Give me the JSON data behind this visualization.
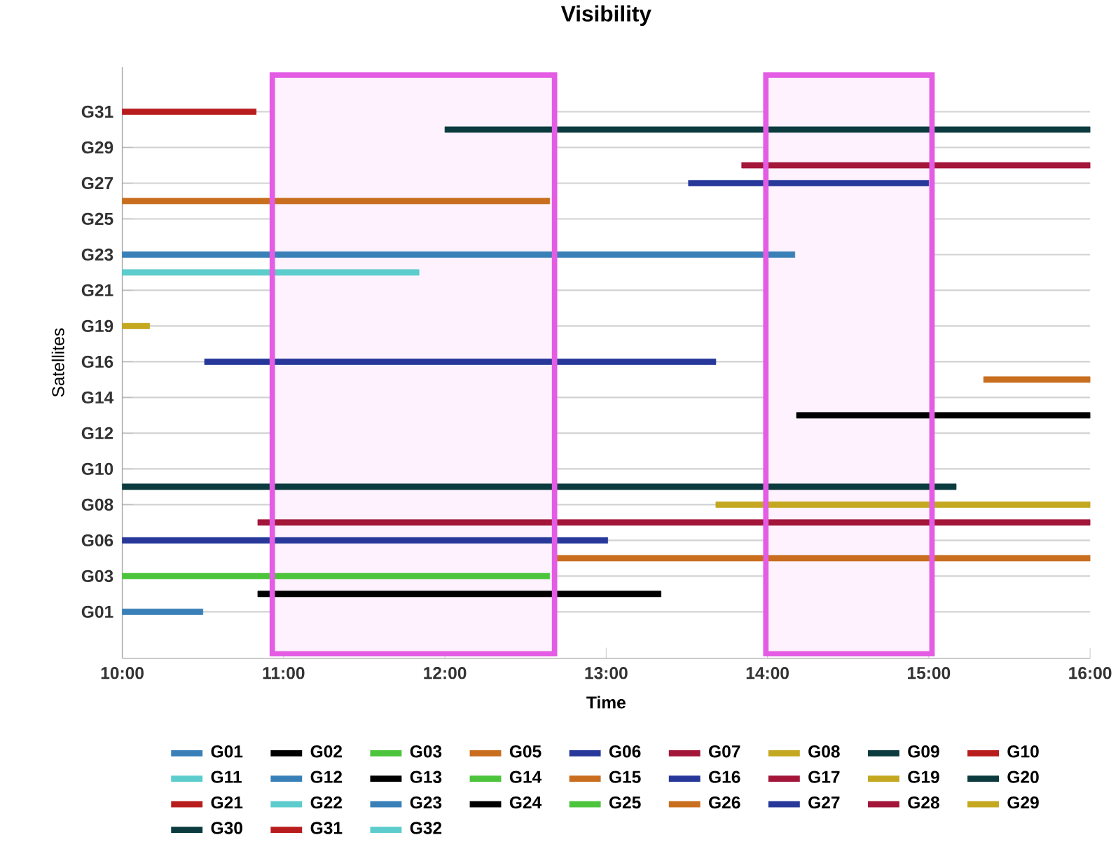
{
  "chart_data": {
    "type": "bar",
    "orientation": "horizontal",
    "title": "Visibility",
    "xlabel": "Time",
    "ylabel": "Satellites",
    "categories": [
      null,
      "G31",
      null,
      "G29",
      null,
      "G27",
      null,
      "G25",
      null,
      "G23",
      null,
      "G21",
      null,
      "G19",
      null,
      "G16",
      null,
      "G14",
      null,
      "G12",
      null,
      "G10",
      null,
      "G08",
      null,
      "G06",
      null,
      "G03",
      null,
      "G01"
    ],
    "xlim": [
      10,
      16
    ],
    "xticks": [
      {
        "value": 10,
        "label": "10:00"
      },
      {
        "value": 11,
        "label": "11:00"
      },
      {
        "value": 12,
        "label": "12:00"
      },
      {
        "value": 13,
        "label": "13:00"
      },
      {
        "value": 14,
        "label": "14:00"
      },
      {
        "value": 15,
        "label": "15:00"
      },
      {
        "value": 16,
        "label": "16:00"
      }
    ],
    "grid": "y",
    "legend": "bottom",
    "bands": [
      {
        "axis": "x",
        "from": 10.93,
        "to": 12.68
      },
      {
        "axis": "x",
        "from": 13.99,
        "to": 15.02
      }
    ],
    "series": [
      {
        "name": "G01",
        "color": "#3a80b8",
        "values": [
          null,
          null,
          null,
          null,
          null,
          null,
          null,
          null,
          null,
          null,
          null,
          null,
          null,
          null,
          null,
          null,
          null,
          null,
          null,
          null,
          null,
          null,
          null,
          null,
          null,
          null,
          null,
          null,
          null,
          0.5
        ],
        "base": [
          null,
          null,
          null,
          null,
          null,
          null,
          null,
          null,
          null,
          null,
          null,
          null,
          null,
          null,
          null,
          null,
          null,
          null,
          null,
          null,
          null,
          null,
          null,
          null,
          null,
          null,
          null,
          null,
          null,
          10.0
        ]
      },
      {
        "name": "G02",
        "color": "#000000",
        "values": [
          null,
          null,
          null,
          null,
          null,
          null,
          null,
          null,
          null,
          null,
          null,
          null,
          null,
          null,
          null,
          null,
          null,
          null,
          null,
          null,
          null,
          null,
          null,
          null,
          null,
          null,
          null,
          null,
          2.5,
          null
        ],
        "base": [
          null,
          null,
          null,
          null,
          null,
          null,
          null,
          null,
          null,
          null,
          null,
          null,
          null,
          null,
          null,
          null,
          null,
          null,
          null,
          null,
          null,
          null,
          null,
          null,
          null,
          null,
          null,
          null,
          10.84,
          null
        ]
      },
      {
        "name": "G03",
        "color": "#4cc43c",
        "values": [
          null,
          null,
          null,
          null,
          null,
          null,
          null,
          null,
          null,
          null,
          null,
          null,
          null,
          null,
          null,
          null,
          null,
          null,
          null,
          null,
          null,
          null,
          null,
          null,
          null,
          null,
          null,
          2.65,
          null,
          null
        ],
        "base": [
          null,
          null,
          null,
          null,
          null,
          null,
          null,
          null,
          null,
          null,
          null,
          null,
          null,
          null,
          null,
          null,
          null,
          null,
          null,
          null,
          null,
          null,
          null,
          null,
          null,
          null,
          null,
          10.0,
          null,
          null
        ]
      },
      {
        "name": "G05",
        "color": "#c86e1e",
        "values": [
          null,
          null,
          null,
          null,
          null,
          null,
          null,
          null,
          null,
          null,
          null,
          null,
          null,
          null,
          null,
          null,
          null,
          null,
          null,
          null,
          null,
          null,
          null,
          null,
          null,
          null,
          3.32,
          null,
          null,
          null
        ],
        "base": [
          null,
          null,
          null,
          null,
          null,
          null,
          null,
          null,
          null,
          null,
          null,
          null,
          null,
          null,
          null,
          null,
          null,
          null,
          null,
          null,
          null,
          null,
          null,
          null,
          null,
          null,
          12.68,
          null,
          null,
          null
        ]
      },
      {
        "name": "G06",
        "color": "#27389a",
        "values": [
          null,
          null,
          null,
          null,
          null,
          null,
          null,
          null,
          null,
          null,
          null,
          null,
          null,
          null,
          null,
          null,
          null,
          null,
          null,
          null,
          null,
          null,
          null,
          null,
          null,
          3.01,
          null,
          null,
          null,
          null
        ],
        "base": [
          null,
          null,
          null,
          null,
          null,
          null,
          null,
          null,
          null,
          null,
          null,
          null,
          null,
          null,
          null,
          null,
          null,
          null,
          null,
          null,
          null,
          null,
          null,
          null,
          null,
          10.0,
          null,
          null,
          null,
          null
        ]
      },
      {
        "name": "G07",
        "color": "#a3163a",
        "values": [
          null,
          null,
          null,
          null,
          null,
          null,
          null,
          null,
          null,
          null,
          null,
          null,
          null,
          null,
          null,
          null,
          null,
          null,
          null,
          null,
          null,
          null,
          null,
          null,
          5.16,
          null,
          null,
          null,
          null,
          null
        ],
        "base": [
          null,
          null,
          null,
          null,
          null,
          null,
          null,
          null,
          null,
          null,
          null,
          null,
          null,
          null,
          null,
          null,
          null,
          null,
          null,
          null,
          null,
          null,
          null,
          null,
          10.84,
          null,
          null,
          null,
          null,
          null
        ]
      },
      {
        "name": "G08",
        "color": "#c4a820",
        "values": [
          null,
          null,
          null,
          null,
          null,
          null,
          null,
          null,
          null,
          null,
          null,
          null,
          null,
          null,
          null,
          null,
          null,
          null,
          null,
          null,
          null,
          null,
          null,
          2.32,
          null,
          null,
          null,
          null,
          null,
          null
        ],
        "base": [
          null,
          null,
          null,
          null,
          null,
          null,
          null,
          null,
          null,
          null,
          null,
          null,
          null,
          null,
          null,
          null,
          null,
          null,
          null,
          null,
          null,
          null,
          null,
          13.68,
          null,
          null,
          null,
          null,
          null,
          null
        ]
      },
      {
        "name": "G09",
        "color": "#0b3b3e",
        "values": [
          null,
          null,
          null,
          null,
          null,
          null,
          null,
          null,
          null,
          null,
          null,
          null,
          null,
          null,
          null,
          null,
          null,
          null,
          null,
          null,
          null,
          null,
          5.17,
          null,
          null,
          null,
          null,
          null,
          null,
          null
        ],
        "base": [
          null,
          null,
          null,
          null,
          null,
          null,
          null,
          null,
          null,
          null,
          null,
          null,
          null,
          null,
          null,
          null,
          null,
          null,
          null,
          null,
          null,
          null,
          10.0,
          null,
          null,
          null,
          null,
          null,
          null,
          null
        ]
      },
      {
        "name": "G10",
        "color": "#b81c1c",
        "values": [
          null,
          null,
          null,
          null,
          null,
          null,
          null,
          null,
          null,
          null,
          null,
          null,
          null,
          null,
          null,
          null,
          null,
          null,
          null,
          null,
          null,
          null,
          null,
          null,
          null,
          null,
          null,
          null,
          null,
          null
        ]
      },
      {
        "name": "G11",
        "color": "#5ccccc",
        "values": [
          null,
          null,
          null,
          null,
          null,
          null,
          null,
          null,
          null,
          null,
          null,
          null,
          null,
          null,
          null,
          null,
          null,
          null,
          null,
          null,
          null,
          null,
          null,
          null,
          null,
          null,
          null,
          null,
          null,
          null
        ]
      },
      {
        "name": "G12",
        "color": "#3a80b8",
        "values": [
          null,
          null,
          null,
          null,
          null,
          null,
          null,
          null,
          null,
          null,
          null,
          null,
          null,
          null,
          null,
          null,
          null,
          null,
          null,
          null,
          null,
          null,
          null,
          null,
          null,
          null,
          null,
          null,
          null,
          null
        ]
      },
      {
        "name": "G13",
        "color": "#000000",
        "values": [
          null,
          null,
          null,
          null,
          null,
          null,
          null,
          null,
          null,
          null,
          null,
          null,
          null,
          null,
          null,
          null,
          null,
          null,
          1.82,
          null,
          null,
          null,
          null,
          null,
          null,
          null,
          null,
          null,
          null,
          null
        ],
        "base": [
          null,
          null,
          null,
          null,
          null,
          null,
          null,
          null,
          null,
          null,
          null,
          null,
          null,
          null,
          null,
          null,
          null,
          null,
          14.18,
          null,
          null,
          null,
          null,
          null,
          null,
          null,
          null,
          null,
          null,
          null
        ]
      },
      {
        "name": "G14",
        "color": "#4cc43c",
        "values": [
          null,
          null,
          null,
          null,
          null,
          null,
          null,
          null,
          null,
          null,
          null,
          null,
          null,
          null,
          null,
          null,
          null,
          null,
          null,
          null,
          null,
          null,
          null,
          null,
          null,
          null,
          null,
          null,
          null,
          null
        ]
      },
      {
        "name": "G15",
        "color": "#c86e1e",
        "values": [
          null,
          null,
          null,
          null,
          null,
          null,
          null,
          null,
          null,
          null,
          null,
          null,
          null,
          null,
          null,
          null,
          0.66,
          null,
          null,
          null,
          null,
          null,
          null,
          null,
          null,
          null,
          null,
          null,
          null,
          null
        ],
        "base": [
          null,
          null,
          null,
          null,
          null,
          null,
          null,
          null,
          null,
          null,
          null,
          null,
          null,
          null,
          null,
          null,
          15.34,
          null,
          null,
          null,
          null,
          null,
          null,
          null,
          null,
          null,
          null,
          null,
          null,
          null
        ]
      },
      {
        "name": "G16",
        "color": "#27389a",
        "values": [
          null,
          null,
          null,
          null,
          null,
          null,
          null,
          null,
          null,
          null,
          null,
          null,
          null,
          null,
          null,
          3.17,
          null,
          null,
          null,
          null,
          null,
          null,
          null,
          null,
          null,
          null,
          null,
          null,
          null,
          null
        ],
        "base": [
          null,
          null,
          null,
          null,
          null,
          null,
          null,
          null,
          null,
          null,
          null,
          null,
          null,
          null,
          null,
          10.51,
          null,
          null,
          null,
          null,
          null,
          null,
          null,
          null,
          null,
          null,
          null,
          null,
          null,
          null
        ]
      },
      {
        "name": "G17",
        "color": "#a3163a",
        "values": [
          null,
          null,
          null,
          null,
          null,
          null,
          null,
          null,
          null,
          null,
          null,
          null,
          null,
          null,
          null,
          null,
          null,
          null,
          null,
          null,
          null,
          null,
          null,
          null,
          null,
          null,
          null,
          null,
          null,
          null
        ]
      },
      {
        "name": "G19",
        "color": "#c4a820",
        "values": [
          null,
          null,
          null,
          null,
          null,
          null,
          null,
          null,
          null,
          null,
          null,
          null,
          null,
          0.17,
          null,
          null,
          null,
          null,
          null,
          null,
          null,
          null,
          null,
          null,
          null,
          null,
          null,
          null,
          null,
          null
        ],
        "base": [
          null,
          null,
          null,
          null,
          null,
          null,
          null,
          null,
          null,
          null,
          null,
          null,
          null,
          10.0,
          null,
          null,
          null,
          null,
          null,
          null,
          null,
          null,
          null,
          null,
          null,
          null,
          null,
          null,
          null,
          null
        ]
      },
      {
        "name": "G20",
        "color": "#0b3b3e",
        "values": [
          null,
          null,
          null,
          null,
          null,
          null,
          null,
          null,
          null,
          null,
          null,
          null,
          null,
          null,
          null,
          null,
          null,
          null,
          null,
          null,
          null,
          null,
          null,
          null,
          null,
          null,
          null,
          null,
          null,
          null
        ]
      },
      {
        "name": "G21",
        "color": "#b81c1c",
        "values": [
          null,
          null,
          null,
          null,
          null,
          null,
          null,
          null,
          null,
          null,
          null,
          null,
          null,
          null,
          null,
          null,
          null,
          null,
          null,
          null,
          null,
          null,
          null,
          null,
          null,
          null,
          null,
          null,
          null,
          null
        ]
      },
      {
        "name": "G22",
        "color": "#5ccccc",
        "values": [
          null,
          null,
          null,
          null,
          null,
          null,
          null,
          null,
          null,
          null,
          1.84,
          null,
          null,
          null,
          null,
          null,
          null,
          null,
          null,
          null,
          null,
          null,
          null,
          null,
          null,
          null,
          null,
          null,
          null,
          null
        ],
        "base": [
          null,
          null,
          null,
          null,
          null,
          null,
          null,
          null,
          null,
          null,
          10.0,
          null,
          null,
          null,
          null,
          null,
          null,
          null,
          null,
          null,
          null,
          null,
          null,
          null,
          null,
          null,
          null,
          null,
          null,
          null
        ]
      },
      {
        "name": "G23",
        "color": "#3a80b8",
        "values": [
          null,
          null,
          null,
          null,
          null,
          null,
          null,
          null,
          null,
          4.17,
          null,
          null,
          null,
          null,
          null,
          null,
          null,
          null,
          null,
          null,
          null,
          null,
          null,
          null,
          null,
          null,
          null,
          null,
          null,
          null
        ],
        "base": [
          null,
          null,
          null,
          null,
          null,
          null,
          null,
          null,
          null,
          10.0,
          null,
          null,
          null,
          null,
          null,
          null,
          null,
          null,
          null,
          null,
          null,
          null,
          null,
          null,
          null,
          null,
          null,
          null,
          null,
          null
        ]
      },
      {
        "name": "G24",
        "color": "#000000",
        "values": [
          null,
          null,
          null,
          null,
          null,
          null,
          null,
          null,
          null,
          null,
          null,
          null,
          null,
          null,
          null,
          null,
          null,
          null,
          null,
          null,
          null,
          null,
          null,
          null,
          null,
          null,
          null,
          null,
          null,
          null
        ]
      },
      {
        "name": "G25",
        "color": "#4cc43c",
        "values": [
          null,
          null,
          null,
          null,
          null,
          null,
          null,
          null,
          null,
          null,
          null,
          null,
          null,
          null,
          null,
          null,
          null,
          null,
          null,
          null,
          null,
          null,
          null,
          null,
          null,
          null,
          null,
          null,
          null,
          null
        ]
      },
      {
        "name": "G26",
        "color": "#c86e1e",
        "values": [
          null,
          null,
          null,
          null,
          null,
          null,
          2.65,
          null,
          null,
          null,
          null,
          null,
          null,
          null,
          null,
          null,
          null,
          null,
          null,
          null,
          null,
          null,
          null,
          null,
          null,
          null,
          null,
          null,
          null,
          null
        ],
        "base": [
          null,
          null,
          null,
          null,
          null,
          null,
          10.0,
          null,
          null,
          null,
          null,
          null,
          null,
          null,
          null,
          null,
          null,
          null,
          null,
          null,
          null,
          null,
          null,
          null,
          null,
          null,
          null,
          null,
          null,
          null
        ]
      },
      {
        "name": "G27",
        "color": "#27389a",
        "values": [
          null,
          null,
          null,
          null,
          null,
          1.49,
          null,
          null,
          null,
          null,
          null,
          null,
          null,
          null,
          null,
          null,
          null,
          null,
          null,
          null,
          null,
          null,
          null,
          null,
          null,
          null,
          null,
          null,
          null,
          null
        ],
        "base": [
          null,
          null,
          null,
          null,
          null,
          13.51,
          null,
          null,
          null,
          null,
          null,
          null,
          null,
          null,
          null,
          null,
          null,
          null,
          null,
          null,
          null,
          null,
          null,
          null,
          null,
          null,
          null,
          null,
          null,
          null
        ]
      },
      {
        "name": "G28",
        "color": "#a3163a",
        "values": [
          null,
          null,
          null,
          null,
          2.16,
          null,
          null,
          null,
          null,
          null,
          null,
          null,
          null,
          null,
          null,
          null,
          null,
          null,
          null,
          null,
          null,
          null,
          null,
          null,
          null,
          null,
          null,
          null,
          null,
          null
        ],
        "base": [
          null,
          null,
          null,
          null,
          13.84,
          null,
          null,
          null,
          null,
          null,
          null,
          null,
          null,
          null,
          null,
          null,
          null,
          null,
          null,
          null,
          null,
          null,
          null,
          null,
          null,
          null,
          null,
          null,
          null,
          null
        ]
      },
      {
        "name": "G29",
        "color": "#c4a820",
        "values": [
          null,
          null,
          null,
          null,
          null,
          null,
          null,
          null,
          null,
          null,
          null,
          null,
          null,
          null,
          null,
          null,
          null,
          null,
          null,
          null,
          null,
          null,
          null,
          null,
          null,
          null,
          null,
          null,
          null,
          null
        ]
      },
      {
        "name": "G30",
        "color": "#0b3b3e",
        "values": [
          null,
          null,
          4.0,
          null,
          null,
          null,
          null,
          null,
          null,
          null,
          null,
          null,
          null,
          null,
          null,
          null,
          null,
          null,
          null,
          null,
          null,
          null,
          null,
          null,
          null,
          null,
          null,
          null,
          null,
          null
        ],
        "base": [
          null,
          null,
          12.0,
          null,
          null,
          null,
          null,
          null,
          null,
          null,
          null,
          null,
          null,
          null,
          null,
          null,
          null,
          null,
          null,
          null,
          null,
          null,
          null,
          null,
          null,
          null,
          null,
          null,
          null,
          null
        ]
      },
      {
        "name": "G31",
        "color": "#b81c1c",
        "values": [
          null,
          0.83,
          null,
          null,
          null,
          null,
          null,
          null,
          null,
          null,
          null,
          null,
          null,
          null,
          null,
          null,
          null,
          null,
          null,
          null,
          null,
          null,
          null,
          null,
          null,
          null,
          null,
          null,
          null,
          null
        ],
        "base": [
          null,
          10.0,
          null,
          null,
          null,
          null,
          null,
          null,
          null,
          null,
          null,
          null,
          null,
          null,
          null,
          null,
          null,
          null,
          null,
          null,
          null,
          null,
          null,
          null,
          null,
          null,
          null,
          null,
          null,
          null
        ]
      },
      {
        "name": "G32",
        "color": "#5ccccc",
        "values": [
          null,
          null,
          null,
          null,
          null,
          null,
          null,
          null,
          null,
          null,
          null,
          null,
          null,
          null,
          null,
          null,
          null,
          null,
          null,
          null,
          null,
          null,
          null,
          null,
          null,
          null,
          null,
          null,
          null,
          null
        ]
      }
    ]
  }
}
